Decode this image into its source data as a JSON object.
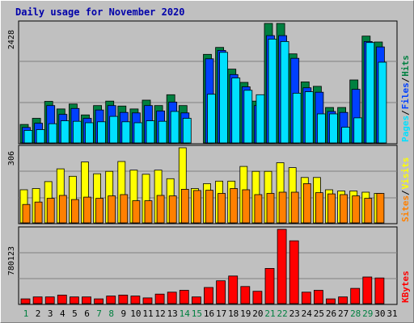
{
  "chart_data": {
    "title": "Daily usage for November 2020",
    "days": [
      "1",
      "2",
      "3",
      "4",
      "5",
      "6",
      "7",
      "8",
      "9",
      "10",
      "11",
      "12",
      "13",
      "14",
      "15",
      "16",
      "17",
      "18",
      "19",
      "20",
      "21",
      "22",
      "23",
      "24",
      "25",
      "26",
      "27",
      "28",
      "29",
      "30",
      "31"
    ],
    "weekend_days": [
      "1",
      "7",
      "8",
      "14",
      "15",
      "21",
      "22",
      "28",
      "29"
    ],
    "colors": {
      "hits": "#008040",
      "files": "#0040ff",
      "pages": "#00e0ff",
      "visits": "#ffff00",
      "sites": "#ff8000",
      "kbytes": "#ff0000",
      "weekend_tick": "#008040",
      "weekday_tick": "#000000"
    },
    "panels": [
      {
        "type": "bar",
        "max_label": "2428",
        "ymax": 2428,
        "legend": [
          "Pages",
          "Files",
          "Hits"
        ],
        "series": [
          {
            "name": "Hits",
            "values": [
              375,
              500,
              845,
              690,
              790,
              570,
              760,
              850,
              750,
              690,
              870,
              760,
              980,
              760,
              0,
              1800,
              1940,
              1500,
              1230,
              850,
              2428,
              2428,
              1810,
              1240,
              1150,
              720,
              720,
              1280,
              2170,
              2050,
              0
            ]
          },
          {
            "name": "Files",
            "values": [
              315,
              400,
              760,
              580,
              700,
              500,
              670,
              760,
              620,
              610,
              760,
              650,
              830,
              610,
              0,
              1710,
              1880,
              1390,
              1140,
              760,
              2180,
              2180,
              1720,
              1120,
              1030,
              640,
              620,
              1090,
              2060,
              1950,
              0
            ]
          },
          {
            "name": "Pages",
            "values": [
              255,
              270,
              390,
              450,
              440,
              410,
              430,
              540,
              430,
              410,
              450,
              440,
              640,
              500,
              0,
              990,
              1840,
              1320,
              1070,
              980,
              2110,
              2060,
              1010,
              1040,
              590,
              590,
              320,
              510,
              2040,
              1640,
              0
            ]
          }
        ]
      },
      {
        "type": "bar",
        "max_label": "306",
        "ymax": 306,
        "legend": [
          "Sites",
          "Visits"
        ],
        "series": [
          {
            "name": "Visits",
            "values": [
              135,
              140,
              168,
              220,
              190,
              248,
              200,
              210,
              250,
              215,
              198,
              215,
              180,
              306,
              140,
              160,
              170,
              170,
              230,
              210,
              210,
              245,
              225,
              185,
              185,
              135,
              130,
              130,
              125,
              120,
              0
            ]
          },
          {
            "name": "Sites",
            "values": [
              75,
              85,
              100,
              112,
              95,
              105,
              100,
              110,
              115,
              90,
              90,
              112,
              110,
              137,
              132,
              133,
              120,
              140,
              135,
              115,
              120,
              125,
              125,
              160,
              123,
              118,
              115,
              110,
              100,
              120,
              0
            ]
          }
        ]
      },
      {
        "type": "bar",
        "max_label": "780123",
        "ymax": 780123,
        "legend": [
          "KBytes"
        ],
        "series": [
          {
            "name": "KBytes",
            "values": [
              50000,
              70000,
              70000,
              90000,
              70000,
              70000,
              50000,
              80000,
              90000,
              80000,
              60000,
              100000,
              120000,
              140000,
              70000,
              170000,
              240000,
              290000,
              180000,
              130000,
              370000,
              780123,
              660000,
              120000,
              140000,
              50000,
              70000,
              160000,
              280000,
              270000,
              0
            ]
          }
        ]
      }
    ]
  }
}
